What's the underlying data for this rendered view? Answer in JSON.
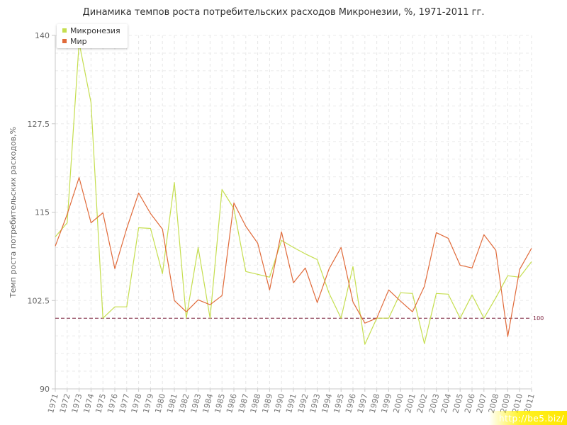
{
  "chart_data": {
    "type": "line",
    "title": "Динамика темпов роста потребительских расходов Микронезии, %, 1971-2011 гг.",
    "ylabel": "Темп роста потребительских расходов,%",
    "xlabel": "",
    "ylim": [
      90,
      140
    ],
    "yticks": [
      "90",
      "102.5",
      "115",
      "127.5",
      "140"
    ],
    "x": [
      "1971",
      "1972",
      "1973",
      "1974",
      "1975",
      "1976",
      "1977",
      "1978",
      "1979",
      "1980",
      "1981",
      "1982",
      "1983",
      "1984",
      "1985",
      "1986",
      "1987",
      "1988",
      "1989",
      "1990",
      "1991",
      "1992",
      "1993",
      "1994",
      "1995",
      "1996",
      "1997",
      "1998",
      "1999",
      "2000",
      "2001",
      "2002",
      "2003",
      "2004",
      "2005",
      "2006",
      "2007",
      "2008",
      "2009",
      "2010",
      "2011"
    ],
    "series": [
      {
        "name": "Микронезия",
        "color": "#c5de4f",
        "values": [
          111.5,
          113.5,
          139,
          130.5,
          100,
          101.6,
          101.6,
          112.8,
          112.7,
          106.3,
          119.2,
          100,
          110,
          100,
          118.2,
          115.5,
          106.6,
          106.2,
          105.8,
          111,
          110,
          109.1,
          108.3,
          103.5,
          100,
          107.3,
          96.3,
          100,
          100,
          103.6,
          103.5,
          96.4,
          103.5,
          103.4,
          100,
          103.3,
          100,
          102.9,
          106,
          105.8,
          108
        ]
      },
      {
        "name": "Мир",
        "color": "#e06a3a",
        "values": [
          110.2,
          114.7,
          119.9,
          113.5,
          114.9,
          107,
          112.7,
          117.7,
          114.8,
          112.6,
          102.5,
          100.9,
          102.6,
          101.9,
          103.2,
          116.3,
          113,
          110.6,
          104,
          112.2,
          105,
          107.1,
          102.2,
          107,
          110,
          102.3,
          99.3,
          100,
          104,
          102.4,
          100.9,
          104.5,
          112.1,
          111.3,
          107.5,
          107.1,
          111.8,
          109.6,
          97.4,
          106.9,
          109.9
        ]
      }
    ],
    "reference_line": {
      "value": 100,
      "label": "100",
      "color": "#7a1e3a"
    },
    "grid": true,
    "legend_position": "top-left"
  },
  "watermark": "http://be5.biz/"
}
